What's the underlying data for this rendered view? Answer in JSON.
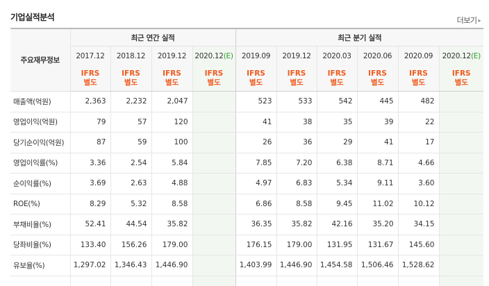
{
  "section_title": "기업실적분석",
  "more_label": "더보기",
  "more_arrow": "▸",
  "row_header_label": "주요재무정보",
  "annual_group_label": "최근 연간 실적",
  "quarter_group_label": "최근 분기 실적",
  "annual_periods": [
    {
      "label": "2017.12",
      "estimate": false
    },
    {
      "label": "2018.12",
      "estimate": false
    },
    {
      "label": "2019.12",
      "estimate": false
    },
    {
      "label": "2020.12",
      "estimate": true
    }
  ],
  "quarter_periods": [
    {
      "label": "2019.09",
      "estimate": false
    },
    {
      "label": "2019.12",
      "estimate": false
    },
    {
      "label": "2020.03",
      "estimate": false
    },
    {
      "label": "2020.06",
      "estimate": false
    },
    {
      "label": "2020.09",
      "estimate": false
    },
    {
      "label": "2020.12",
      "estimate": true
    }
  ],
  "estimate_marker": "(E)",
  "accounting_line1": "IFRS",
  "accounting_line2": "별도",
  "rows": [
    {
      "label": "매출액(억원)",
      "annual": [
        "2,363",
        "2,232",
        "2,047",
        ""
      ],
      "quarter": [
        "523",
        "533",
        "542",
        "445",
        "482",
        ""
      ]
    },
    {
      "label": "영업이익(억원)",
      "annual": [
        "79",
        "57",
        "120",
        ""
      ],
      "quarter": [
        "41",
        "38",
        "35",
        "39",
        "22",
        ""
      ]
    },
    {
      "label": "당기순이익(억원)",
      "annual": [
        "87",
        "59",
        "100",
        ""
      ],
      "quarter": [
        "26",
        "36",
        "29",
        "41",
        "17",
        ""
      ]
    },
    {
      "label": "영업이익률(%)",
      "annual": [
        "3.36",
        "2.54",
        "5.84",
        ""
      ],
      "quarter": [
        "7.85",
        "7.20",
        "6.38",
        "8.71",
        "4.66",
        ""
      ],
      "group_start": true
    },
    {
      "label": "순이익률(%)",
      "annual": [
        "3.69",
        "2.63",
        "4.88",
        ""
      ],
      "quarter": [
        "4.97",
        "6.83",
        "5.34",
        "9.11",
        "3.60",
        ""
      ]
    },
    {
      "label": "ROE(%)",
      "annual": [
        "8.29",
        "5.32",
        "8.58",
        ""
      ],
      "quarter": [
        "6.86",
        "8.58",
        "9.45",
        "11.02",
        "10.12",
        ""
      ]
    },
    {
      "label": "부채비율(%)",
      "annual": [
        "52.41",
        "44.54",
        "35.82",
        ""
      ],
      "quarter": [
        "36.35",
        "35.82",
        "42.16",
        "35.20",
        "34.15",
        ""
      ],
      "group_start": true
    },
    {
      "label": "당좌비율(%)",
      "annual": [
        "133.40",
        "156.26",
        "179.00",
        ""
      ],
      "quarter": [
        "176.15",
        "179.00",
        "131.95",
        "131.67",
        "145.60",
        ""
      ]
    },
    {
      "label": "유보율(%)",
      "annual": [
        "1,297.02",
        "1,346.43",
        "1,446.90",
        ""
      ],
      "quarter": [
        "1,403.99",
        "1,446.90",
        "1,454.58",
        "1,506.46",
        "1,528.62",
        ""
      ]
    }
  ]
}
